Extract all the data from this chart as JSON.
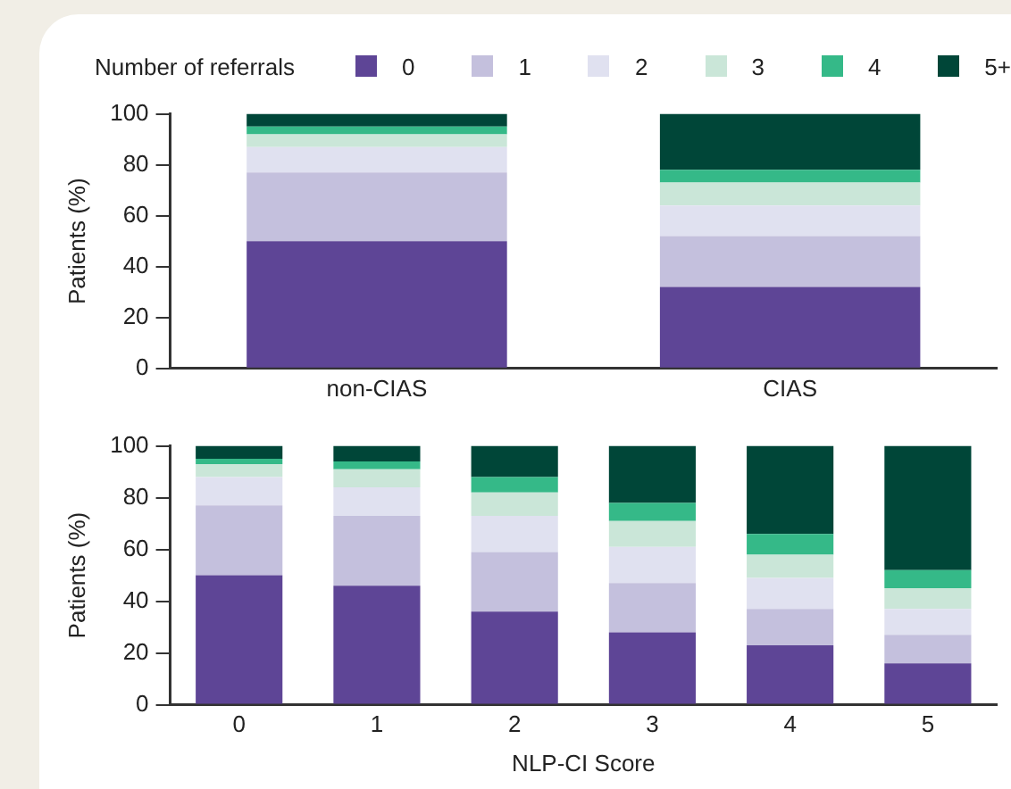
{
  "chart_data": [
    {
      "type": "bar",
      "stacked": true,
      "legend": "top",
      "legend_title": "Number of referrals",
      "ylabel": "Patients (%)",
      "categories": [
        "non-CIAS",
        "CIAS"
      ],
      "ylim": [
        0,
        100
      ],
      "yticks": [
        0,
        20,
        40,
        60,
        80,
        100
      ],
      "grid": false,
      "series": [
        {
          "name": "0",
          "color": "#5e4596",
          "values": [
            50,
            32
          ]
        },
        {
          "name": "1",
          "color": "#c4c0dd",
          "values": [
            27,
            20
          ]
        },
        {
          "name": "2",
          "color": "#e0e1f0",
          "values": [
            10,
            12
          ]
        },
        {
          "name": "3",
          "color": "#cae6d8",
          "values": [
            5,
            9
          ]
        },
        {
          "name": "4",
          "color": "#35b988",
          "values": [
            3,
            5
          ]
        },
        {
          "name": "5+",
          "color": "#004638",
          "values": [
            5,
            22
          ]
        }
      ]
    },
    {
      "type": "bar",
      "stacked": true,
      "ylabel": "Patients (%)",
      "xlabel": "NLP-CI Score",
      "categories": [
        "0",
        "1",
        "2",
        "3",
        "4",
        "5"
      ],
      "ylim": [
        0,
        100
      ],
      "yticks": [
        0,
        20,
        40,
        60,
        80,
        100
      ],
      "grid": false,
      "series": [
        {
          "color": "#5e4596",
          "values": [
            50,
            46,
            36,
            28,
            23,
            16
          ]
        },
        {
          "color": "#c4c0dd",
          "values": [
            27,
            27,
            23,
            19,
            14,
            11
          ]
        },
        {
          "color": "#e0e1f0",
          "values": [
            11,
            11,
            14,
            14,
            12,
            10
          ]
        },
        {
          "color": "#cae6d8",
          "values": [
            5,
            7,
            9,
            10,
            9,
            8
          ]
        },
        {
          "color": "#35b988",
          "values": [
            2,
            3,
            6,
            7,
            8,
            7
          ]
        },
        {
          "color": "#004638",
          "values": [
            5,
            6,
            12,
            22,
            34,
            48
          ]
        }
      ]
    }
  ]
}
